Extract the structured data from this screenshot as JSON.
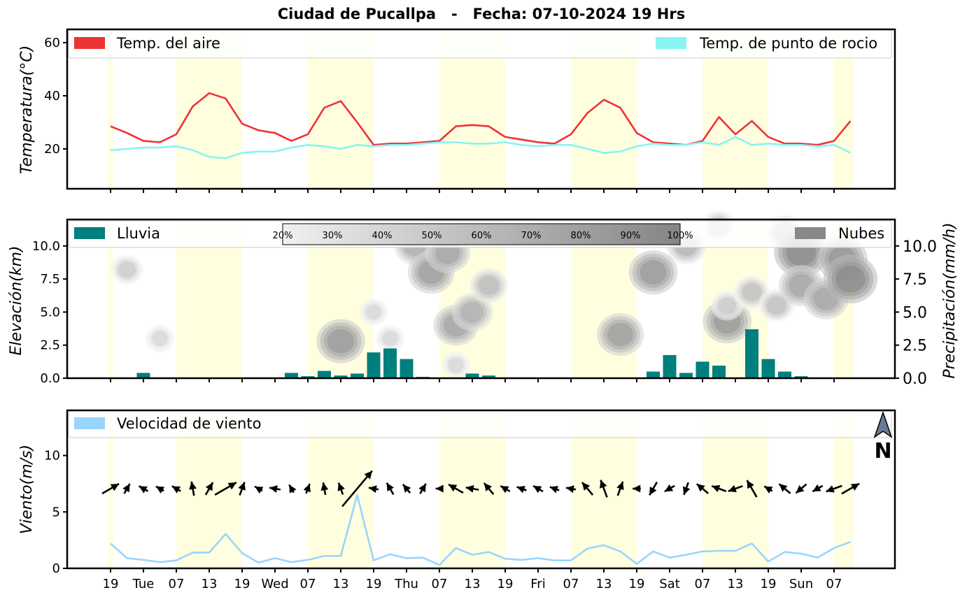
{
  "title": "Ciudad de Pucallpa   -   Fecha: 07-10-2024 19 Hrs",
  "colors": {
    "temp_air": "#ee3333",
    "dew_point": "#88f4f4",
    "rain": "#007f7f",
    "clouds": "#888888",
    "wind_speed": "#99d5fc",
    "day_band": "#ffffe0"
  },
  "x_ticks": [
    "19",
    "Tue",
    "07",
    "13",
    "19",
    "Wed",
    "07",
    "13",
    "19",
    "Thu",
    "07",
    "13",
    "19",
    "Fri",
    "07",
    "13",
    "19",
    "Sat",
    "07",
    "13",
    "19",
    "Sun",
    "07"
  ],
  "compass": {
    "letter": "N",
    "icon": "north-arrow-icon"
  },
  "chart_data": [
    {
      "type": "line",
      "ylabel": "Temperatura(°C)",
      "ylim": [
        5,
        65
      ],
      "yticks": [
        "20",
        "40",
        "60"
      ],
      "x_step_hours": 3,
      "legend": [
        "Temp. del aire",
        "Temp. de punto de rocio"
      ],
      "series": [
        {
          "name": "Temp. del aire",
          "values": [
            28.5,
            26,
            23,
            22.5,
            25.5,
            36,
            41,
            39,
            29.5,
            27,
            26,
            23,
            25.5,
            35.5,
            38,
            30,
            21.5,
            22,
            22,
            22.5,
            23,
            28.5,
            29,
            28.5,
            24.5,
            23.5,
            22.5,
            22,
            25.5,
            33.5,
            38.5,
            35.5,
            26,
            22.5,
            22,
            21.5,
            23,
            32,
            25.5,
            30.5,
            24.5,
            22,
            22,
            21.5,
            23,
            30.5
          ]
        },
        {
          "name": "Temp. de punto de rocio",
          "values": [
            19.5,
            20,
            20.5,
            20.5,
            21,
            19.5,
            17,
            16.5,
            18.5,
            19,
            19,
            20.5,
            21.5,
            21,
            20,
            21.5,
            21,
            21.5,
            21.5,
            22,
            22.5,
            22.5,
            22,
            22,
            22.5,
            21.5,
            21,
            21.5,
            21.5,
            20,
            18.5,
            19,
            21,
            22,
            21.5,
            21.5,
            22.5,
            21.5,
            24.5,
            21.5,
            22,
            21.5,
            21.5,
            21,
            21.5,
            18.5
          ]
        }
      ]
    },
    {
      "type": "bar",
      "ylabel": "Elevación(km)",
      "y2label": "Precipitación(mm/h)",
      "ylim": [
        0,
        12
      ],
      "yticks": [
        "0.0",
        "2.5",
        "5.0",
        "7.5",
        "10.0"
      ],
      "x_step_hours": 3,
      "legend": [
        "Lluvia",
        "Nubes"
      ],
      "colorbar_ticks": [
        "20%",
        "30%",
        "40%",
        "50%",
        "60%",
        "70%",
        "80%",
        "90%",
        "100%"
      ],
      "series": [
        {
          "name": "Lluvia",
          "values": [
            0,
            0.05,
            0.4,
            0.05,
            0,
            0,
            0,
            0,
            0,
            0,
            0,
            0.4,
            0.15,
            0.55,
            0.2,
            0.35,
            1.95,
            2.25,
            1.45,
            0.1,
            0.05,
            0.05,
            0.35,
            0.2,
            0.05,
            0,
            0,
            0,
            0,
            0,
            0,
            0,
            0.05,
            0.5,
            1.75,
            0.4,
            1.25,
            0.95,
            0.05,
            3.7,
            1.45,
            0.5,
            0.15,
            0,
            0,
            0
          ]
        }
      ],
      "clouds": [
        {
          "x": 1,
          "elev": 8.2,
          "density": 0.35
        },
        {
          "x": 3,
          "elev": 3.0,
          "density": 0.25
        },
        {
          "x": 14,
          "elev": 2.8,
          "density": 0.8
        },
        {
          "x": 16,
          "elev": 5.0,
          "density": 0.25
        },
        {
          "x": 17,
          "elev": 3.0,
          "density": 0.25
        },
        {
          "x": 18.5,
          "elev": 10.0,
          "density": 0.6
        },
        {
          "x": 19.5,
          "elev": 8.0,
          "density": 0.75
        },
        {
          "x": 20.5,
          "elev": 9.5,
          "density": 0.7
        },
        {
          "x": 21,
          "elev": 4.0,
          "density": 0.7
        },
        {
          "x": 22,
          "elev": 5.0,
          "density": 0.6
        },
        {
          "x": 23,
          "elev": 7.0,
          "density": 0.5
        },
        {
          "x": 21,
          "elev": 1.0,
          "density": 0.25
        },
        {
          "x": 31,
          "elev": 3.3,
          "density": 0.75
        },
        {
          "x": 33,
          "elev": 8.0,
          "density": 0.8
        },
        {
          "x": 35,
          "elev": 10.0,
          "density": 0.55
        },
        {
          "x": 37,
          "elev": 11.5,
          "density": 0.4
        },
        {
          "x": 37.5,
          "elev": 4.3,
          "density": 0.8
        },
        {
          "x": 37.5,
          "elev": 5.5,
          "density": 0.35
        },
        {
          "x": 39,
          "elev": 6.5,
          "density": 0.45
        },
        {
          "x": 40.5,
          "elev": 5.5,
          "density": 0.45
        },
        {
          "x": 41,
          "elev": 11.0,
          "density": 0.5
        },
        {
          "x": 42,
          "elev": 9.5,
          "density": 0.95
        },
        {
          "x": 42,
          "elev": 7.0,
          "density": 0.7
        },
        {
          "x": 43.5,
          "elev": 6.0,
          "density": 0.7
        },
        {
          "x": 44.5,
          "elev": 9.0,
          "density": 0.85
        },
        {
          "x": 45,
          "elev": 7.5,
          "density": 0.95
        }
      ]
    },
    {
      "type": "line",
      "ylabel": "Viento(m/s)",
      "ylim": [
        0,
        14
      ],
      "yticks": [
        "0",
        "5",
        "10"
      ],
      "x_step_hours": 3,
      "legend": [
        "Velocidad de viento"
      ],
      "series": [
        {
          "name": "Velocidad de viento",
          "values": [
            2.2,
            0.9,
            0.75,
            0.55,
            0.7,
            1.4,
            1.4,
            3.05,
            1.35,
            0.5,
            0.9,
            0.55,
            0.75,
            1.1,
            1.1,
            6.5,
            0.7,
            1.25,
            0.9,
            0.95,
            0.3,
            1.8,
            1.2,
            1.45,
            0.85,
            0.75,
            0.9,
            0.7,
            0.7,
            1.75,
            2.05,
            1.5,
            0.4,
            1.5,
            0.95,
            1.2,
            1.5,
            1.55,
            1.55,
            2.2,
            0.6,
            1.45,
            1.3,
            0.95,
            1.8,
            2.35
          ]
        }
      ],
      "wind_direction_deg": [
        60,
        30,
        300,
        300,
        300,
        350,
        30,
        60,
        20,
        300,
        280,
        330,
        20,
        350,
        340,
        40,
        280,
        330,
        320,
        30,
        270,
        300,
        280,
        320,
        300,
        290,
        300,
        290,
        280,
        320,
        340,
        20,
        270,
        210,
        240,
        200,
        310,
        290,
        250,
        330,
        300,
        310,
        230,
        240,
        250,
        60
      ]
    }
  ]
}
